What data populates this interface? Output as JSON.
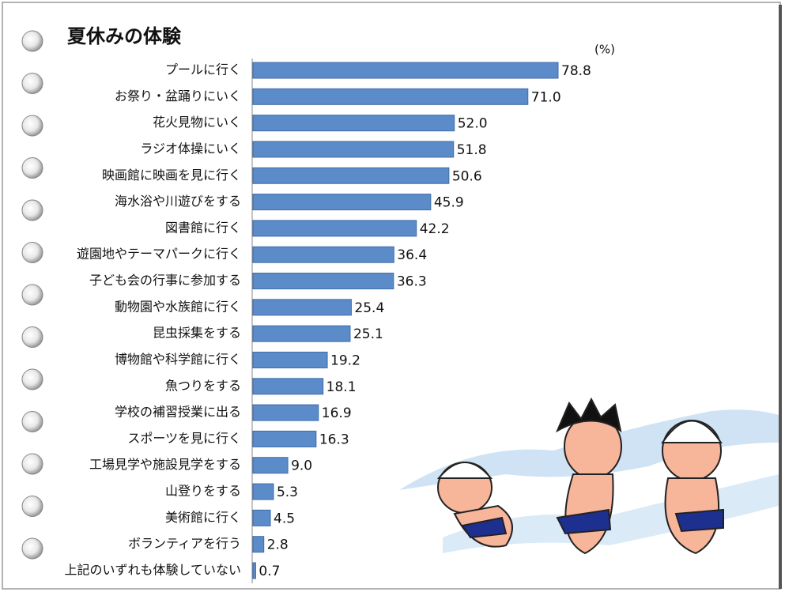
{
  "chart_data": {
    "type": "bar",
    "orientation": "horizontal",
    "title": "夏休みの体験",
    "unit": "(%)",
    "categories": [
      "プールに行く",
      "お祭り・盆踊りにいく",
      "花火見物にいく",
      "ラジオ体操にいく",
      "映画館に映画を見に行く",
      "海水浴や川遊びをする",
      "図書館に行く",
      "遊園地やテーマパークに行く",
      "子ども会の行事に参加する",
      "動物園や水族館に行く",
      "昆虫採集をする",
      "博物館や科学館に行く",
      "魚つりをする",
      "学校の補習授業に出る",
      "スポーツを見に行く",
      "工場見学や施設見学をする",
      "山登りをする",
      "美術館に行く",
      "ボランティアを行う",
      "上記のいずれも体験していない"
    ],
    "values": [
      78.8,
      71.0,
      52.0,
      51.8,
      50.6,
      45.9,
      42.2,
      36.4,
      36.3,
      25.4,
      25.1,
      19.2,
      18.1,
      16.9,
      16.3,
      9.0,
      5.3,
      4.5,
      2.8,
      0.7
    ],
    "value_labels": [
      "78.8",
      "71.0",
      "52.0",
      "51.8",
      "50.6",
      "45.9",
      "42.2",
      "36.4",
      "36.3",
      "25.4",
      "25.1",
      "19.2",
      "18.1",
      "16.9",
      "16.3",
      "9.0",
      "5.3",
      "4.5",
      "2.8",
      "0.7"
    ],
    "color": "#5b8bc9"
  }
}
